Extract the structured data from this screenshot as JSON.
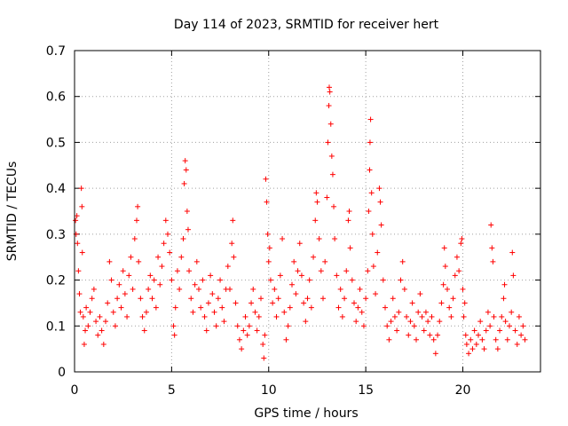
{
  "chart_data": {
    "type": "scatter",
    "title": "Day 114 of 2023, SRMTID for receiver hert",
    "xlabel": "GPS time / hours",
    "ylabel": "SRMTID / TECUs",
    "xlim": [
      0,
      24
    ],
    "ylim": [
      0,
      0.7
    ],
    "xticks": [
      0,
      5,
      10,
      15,
      20
    ],
    "yticks": [
      0,
      0.1,
      0.2,
      0.3,
      0.4,
      0.5,
      0.6,
      0.7
    ],
    "xtick_labels": [
      "0",
      "5",
      "10",
      "15",
      "20"
    ],
    "ytick_labels": [
      "0",
      "0.1",
      "0.2",
      "0.3",
      "0.4",
      "0.5",
      "0.6",
      "0.7"
    ],
    "grid": true,
    "marker": "plus",
    "color": "#ff0000",
    "series": [
      {
        "name": "SRMTID",
        "points": [
          [
            0.05,
            0.33
          ],
          [
            0.08,
            0.3
          ],
          [
            0.12,
            0.34
          ],
          [
            0.15,
            0.28
          ],
          [
            0.2,
            0.22
          ],
          [
            0.25,
            0.17
          ],
          [
            0.3,
            0.13
          ],
          [
            0.35,
            0.4
          ],
          [
            0.38,
            0.36
          ],
          [
            0.4,
            0.26
          ],
          [
            0.45,
            0.12
          ],
          [
            0.5,
            0.06
          ],
          [
            0.55,
            0.09
          ],
          [
            0.6,
            0.14
          ],
          [
            0.7,
            0.1
          ],
          [
            0.8,
            0.13
          ],
          [
            0.9,
            0.16
          ],
          [
            1.0,
            0.18
          ],
          [
            1.1,
            0.11
          ],
          [
            1.2,
            0.08
          ],
          [
            1.3,
            0.12
          ],
          [
            1.4,
            0.09
          ],
          [
            1.5,
            0.06
          ],
          [
            1.6,
            0.11
          ],
          [
            1.7,
            0.15
          ],
          [
            1.8,
            0.24
          ],
          [
            1.9,
            0.2
          ],
          [
            2.0,
            0.13
          ],
          [
            2.1,
            0.1
          ],
          [
            2.2,
            0.16
          ],
          [
            2.3,
            0.19
          ],
          [
            2.4,
            0.14
          ],
          [
            2.5,
            0.22
          ],
          [
            2.6,
            0.17
          ],
          [
            2.7,
            0.12
          ],
          [
            2.8,
            0.21
          ],
          [
            2.9,
            0.25
          ],
          [
            3.0,
            0.18
          ],
          [
            3.1,
            0.29
          ],
          [
            3.2,
            0.33
          ],
          [
            3.25,
            0.36
          ],
          [
            3.3,
            0.24
          ],
          [
            3.4,
            0.16
          ],
          [
            3.5,
            0.12
          ],
          [
            3.6,
            0.09
          ],
          [
            3.7,
            0.13
          ],
          [
            3.8,
            0.18
          ],
          [
            3.9,
            0.21
          ],
          [
            4.0,
            0.16
          ],
          [
            4.1,
            0.2
          ],
          [
            4.2,
            0.14
          ],
          [
            4.3,
            0.25
          ],
          [
            4.4,
            0.19
          ],
          [
            4.5,
            0.23
          ],
          [
            4.6,
            0.28
          ],
          [
            4.7,
            0.33
          ],
          [
            4.8,
            0.3
          ],
          [
            4.9,
            0.26
          ],
          [
            5.0,
            0.2
          ],
          [
            5.1,
            0.1
          ],
          [
            5.15,
            0.08
          ],
          [
            5.2,
            0.14
          ],
          [
            5.3,
            0.22
          ],
          [
            5.4,
            0.18
          ],
          [
            5.5,
            0.25
          ],
          [
            5.6,
            0.29
          ],
          [
            5.65,
            0.41
          ],
          [
            5.7,
            0.46
          ],
          [
            5.75,
            0.44
          ],
          [
            5.8,
            0.35
          ],
          [
            5.85,
            0.31
          ],
          [
            5.9,
            0.22
          ],
          [
            6.0,
            0.16
          ],
          [
            6.1,
            0.13
          ],
          [
            6.2,
            0.19
          ],
          [
            6.3,
            0.24
          ],
          [
            6.4,
            0.18
          ],
          [
            6.5,
            0.14
          ],
          [
            6.6,
            0.2
          ],
          [
            6.7,
            0.12
          ],
          [
            6.8,
            0.09
          ],
          [
            6.9,
            0.15
          ],
          [
            7.0,
            0.21
          ],
          [
            7.1,
            0.17
          ],
          [
            7.2,
            0.13
          ],
          [
            7.3,
            0.1
          ],
          [
            7.4,
            0.16
          ],
          [
            7.5,
            0.2
          ],
          [
            7.6,
            0.14
          ],
          [
            7.7,
            0.11
          ],
          [
            7.8,
            0.18
          ],
          [
            7.9,
            0.23
          ],
          [
            8.0,
            0.18
          ],
          [
            8.1,
            0.28
          ],
          [
            8.15,
            0.33
          ],
          [
            8.2,
            0.25
          ],
          [
            8.3,
            0.15
          ],
          [
            8.4,
            0.1
          ],
          [
            8.5,
            0.07
          ],
          [
            8.6,
            0.05
          ],
          [
            8.7,
            0.09
          ],
          [
            8.8,
            0.12
          ],
          [
            8.9,
            0.08
          ],
          [
            9.0,
            0.1
          ],
          [
            9.1,
            0.15
          ],
          [
            9.2,
            0.18
          ],
          [
            9.3,
            0.13
          ],
          [
            9.4,
            0.09
          ],
          [
            9.5,
            0.12
          ],
          [
            9.6,
            0.16
          ],
          [
            9.7,
            0.06
          ],
          [
            9.75,
            0.03
          ],
          [
            9.8,
            0.08
          ],
          [
            9.85,
            0.42
          ],
          [
            9.9,
            0.37
          ],
          [
            9.95,
            0.3
          ],
          [
            10.0,
            0.24
          ],
          [
            10.05,
            0.27
          ],
          [
            10.1,
            0.2
          ],
          [
            10.2,
            0.15
          ],
          [
            10.3,
            0.18
          ],
          [
            10.4,
            0.12
          ],
          [
            10.5,
            0.16
          ],
          [
            10.6,
            0.21
          ],
          [
            10.7,
            0.29
          ],
          [
            10.8,
            0.13
          ],
          [
            10.9,
            0.07
          ],
          [
            11.0,
            0.1
          ],
          [
            11.1,
            0.14
          ],
          [
            11.2,
            0.19
          ],
          [
            11.3,
            0.24
          ],
          [
            11.4,
            0.17
          ],
          [
            11.5,
            0.22
          ],
          [
            11.6,
            0.28
          ],
          [
            11.7,
            0.21
          ],
          [
            11.8,
            0.15
          ],
          [
            11.9,
            0.11
          ],
          [
            12.0,
            0.16
          ],
          [
            12.1,
            0.2
          ],
          [
            12.2,
            0.14
          ],
          [
            12.3,
            0.25
          ],
          [
            12.4,
            0.33
          ],
          [
            12.45,
            0.39
          ],
          [
            12.5,
            0.37
          ],
          [
            12.6,
            0.29
          ],
          [
            12.7,
            0.22
          ],
          [
            12.8,
            0.16
          ],
          [
            12.9,
            0.24
          ],
          [
            13.0,
            0.38
          ],
          [
            13.05,
            0.5
          ],
          [
            13.1,
            0.58
          ],
          [
            13.12,
            0.62
          ],
          [
            13.15,
            0.61
          ],
          [
            13.2,
            0.54
          ],
          [
            13.25,
            0.47
          ],
          [
            13.3,
            0.43
          ],
          [
            13.35,
            0.36
          ],
          [
            13.4,
            0.29
          ],
          [
            13.5,
            0.21
          ],
          [
            13.6,
            0.14
          ],
          [
            13.7,
            0.18
          ],
          [
            13.8,
            0.12
          ],
          [
            13.9,
            0.16
          ],
          [
            14.0,
            0.22
          ],
          [
            14.1,
            0.33
          ],
          [
            14.15,
            0.35
          ],
          [
            14.2,
            0.27
          ],
          [
            14.3,
            0.2
          ],
          [
            14.4,
            0.15
          ],
          [
            14.5,
            0.11
          ],
          [
            14.6,
            0.14
          ],
          [
            14.7,
            0.18
          ],
          [
            14.8,
            0.13
          ],
          [
            14.9,
            0.1
          ],
          [
            15.0,
            0.16
          ],
          [
            15.1,
            0.22
          ],
          [
            15.15,
            0.35
          ],
          [
            15.2,
            0.44
          ],
          [
            15.22,
            0.5
          ],
          [
            15.25,
            0.55
          ],
          [
            15.3,
            0.39
          ],
          [
            15.35,
            0.3
          ],
          [
            15.4,
            0.23
          ],
          [
            15.5,
            0.17
          ],
          [
            15.6,
            0.26
          ],
          [
            15.7,
            0.4
          ],
          [
            15.75,
            0.37
          ],
          [
            15.8,
            0.32
          ],
          [
            15.9,
            0.2
          ],
          [
            16.0,
            0.14
          ],
          [
            16.1,
            0.1
          ],
          [
            16.2,
            0.07
          ],
          [
            16.3,
            0.11
          ],
          [
            16.4,
            0.16
          ],
          [
            16.5,
            0.12
          ],
          [
            16.6,
            0.09
          ],
          [
            16.7,
            0.13
          ],
          [
            16.8,
            0.2
          ],
          [
            16.9,
            0.24
          ],
          [
            17.0,
            0.18
          ],
          [
            17.1,
            0.12
          ],
          [
            17.2,
            0.08
          ],
          [
            17.3,
            0.11
          ],
          [
            17.4,
            0.15
          ],
          [
            17.5,
            0.1
          ],
          [
            17.6,
            0.07
          ],
          [
            17.7,
            0.13
          ],
          [
            17.8,
            0.17
          ],
          [
            17.9,
            0.12
          ],
          [
            18.0,
            0.09
          ],
          [
            18.1,
            0.13
          ],
          [
            18.2,
            0.11
          ],
          [
            18.3,
            0.08
          ],
          [
            18.4,
            0.12
          ],
          [
            18.5,
            0.07
          ],
          [
            18.6,
            0.04
          ],
          [
            18.7,
            0.08
          ],
          [
            18.8,
            0.11
          ],
          [
            18.9,
            0.15
          ],
          [
            19.0,
            0.19
          ],
          [
            19.05,
            0.27
          ],
          [
            19.1,
            0.23
          ],
          [
            19.2,
            0.18
          ],
          [
            19.3,
            0.14
          ],
          [
            19.4,
            0.12
          ],
          [
            19.5,
            0.16
          ],
          [
            19.6,
            0.21
          ],
          [
            19.7,
            0.25
          ],
          [
            19.8,
            0.22
          ],
          [
            19.9,
            0.28
          ],
          [
            19.95,
            0.29
          ],
          [
            20.0,
            0.18
          ],
          [
            20.05,
            0.12
          ],
          [
            20.1,
            0.15
          ],
          [
            20.15,
            0.08
          ],
          [
            20.2,
            0.06
          ],
          [
            20.3,
            0.04
          ],
          [
            20.4,
            0.07
          ],
          [
            20.5,
            0.05
          ],
          [
            20.6,
            0.09
          ],
          [
            20.7,
            0.06
          ],
          [
            20.8,
            0.08
          ],
          [
            20.9,
            0.11
          ],
          [
            21.0,
            0.07
          ],
          [
            21.1,
            0.05
          ],
          [
            21.2,
            0.09
          ],
          [
            21.3,
            0.13
          ],
          [
            21.4,
            0.1
          ],
          [
            21.45,
            0.32
          ],
          [
            21.5,
            0.27
          ],
          [
            21.55,
            0.24
          ],
          [
            21.6,
            0.12
          ],
          [
            21.7,
            0.07
          ],
          [
            21.8,
            0.05
          ],
          [
            21.9,
            0.09
          ],
          [
            22.0,
            0.12
          ],
          [
            22.1,
            0.16
          ],
          [
            22.15,
            0.19
          ],
          [
            22.2,
            0.11
          ],
          [
            22.3,
            0.07
          ],
          [
            22.4,
            0.1
          ],
          [
            22.5,
            0.13
          ],
          [
            22.55,
            0.26
          ],
          [
            22.6,
            0.21
          ],
          [
            22.7,
            0.09
          ],
          [
            22.8,
            0.06
          ],
          [
            22.9,
            0.12
          ],
          [
            23.0,
            0.08
          ],
          [
            23.1,
            0.1
          ],
          [
            23.2,
            0.07
          ]
        ]
      }
    ]
  }
}
